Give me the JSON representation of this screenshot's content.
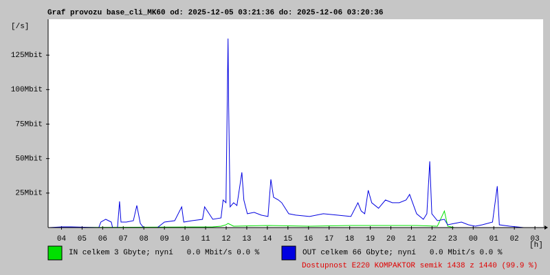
{
  "chart_data": {
    "type": "line",
    "title": "Graf provozu base_cli_MK60 od: 2025-12-05 03:21:36 do: 2025-12-06 03:20:36",
    "y_label": "[/s]",
    "x_label": "[h]",
    "xlim": [
      3.35,
      27.33
    ],
    "xticks": [
      {
        "value": 4,
        "label": "04"
      },
      {
        "value": 5,
        "label": "05"
      },
      {
        "value": 6,
        "label": "06"
      },
      {
        "value": 7,
        "label": "07"
      },
      {
        "value": 8,
        "label": "08"
      },
      {
        "value": 9,
        "label": "09"
      },
      10,
      11,
      12,
      13,
      14,
      15,
      16,
      17,
      18,
      19,
      20,
      21,
      22,
      23,
      {
        "value": 24,
        "label": "00"
      },
      {
        "value": 25,
        "label": "01"
      },
      {
        "value": 26,
        "label": "02"
      },
      {
        "value": 27,
        "label": "03"
      }
    ],
    "ylim": [
      0,
      150
    ],
    "yticks": [
      {
        "value": 25,
        "label": "25Mbit"
      },
      {
        "value": 50,
        "label": "50Mbit"
      },
      {
        "value": 75,
        "label": "75Mbit"
      },
      {
        "value": 100,
        "label": "100Mbit"
      },
      {
        "value": 125,
        "label": "125Mbit"
      }
    ],
    "grid": false,
    "series": [
      {
        "name": "IN celkem 3 Gbyte; nyní   0.0 Mbit/s 0.0 %",
        "color": "#00e000",
        "x": [
          3.4,
          11.35,
          11.75,
          11.99,
          12.09,
          12.36,
          14.03,
          16.05,
          18.06,
          20.07,
          21.25,
          22.26,
          22.6,
          22.76,
          23.09,
          27.29
        ],
        "values": [
          0,
          0.5,
          1,
          2,
          3,
          1,
          1.5,
          1,
          1.5,
          1.5,
          1.5,
          1,
          12,
          1,
          0,
          0
        ]
      },
      {
        "name": "OUT celkem 66 Gbyte; nyní   0.0 Mbit/s 0.0 %",
        "color": "#0000e0",
        "x": [
          3.4,
          4.03,
          4.47,
          5.81,
          5.91,
          6.15,
          6.42,
          6.48,
          6.72,
          6.82,
          6.89,
          7.15,
          7.49,
          7.66,
          7.83,
          7.99,
          8.66,
          8.83,
          9.0,
          9.5,
          9.84,
          9.94,
          10.34,
          10.85,
          10.95,
          11.35,
          11.75,
          11.85,
          11.99,
          12.09,
          12.12,
          12.19,
          12.36,
          12.52,
          12.76,
          12.86,
          13.03,
          13.36,
          13.7,
          14.03,
          14.17,
          14.3,
          14.54,
          14.7,
          15.04,
          15.38,
          16.05,
          16.72,
          17.39,
          18.06,
          18.4,
          18.56,
          18.73,
          18.9,
          19.07,
          19.4,
          19.74,
          20.07,
          20.41,
          20.74,
          20.91,
          21.08,
          21.25,
          21.58,
          21.75,
          21.89,
          21.99,
          22.26,
          22.6,
          22.76,
          23.09,
          23.43,
          23.77,
          24.1,
          24.44,
          24.94,
          25.17,
          25.27,
          25.78,
          26.45,
          27.29
        ],
        "values": [
          0,
          0.5,
          0.5,
          0,
          4,
          6,
          4,
          0,
          0,
          19,
          4,
          4,
          5,
          16,
          3,
          0,
          0,
          2,
          4,
          5,
          15,
          4,
          5,
          6,
          15,
          6,
          7,
          20,
          18,
          137,
          88,
          15,
          18,
          16,
          40,
          20,
          10,
          11,
          9,
          8,
          35,
          22,
          20,
          18,
          10,
          9,
          8,
          10,
          9,
          8,
          18,
          12,
          10,
          27,
          18,
          14,
          20,
          18,
          18,
          20,
          24,
          17,
          10,
          6,
          10,
          48,
          10,
          5,
          6,
          2,
          3,
          4,
          2,
          1,
          2,
          4,
          30,
          2,
          1,
          0,
          0
        ]
      }
    ],
    "annotation": "Dostupnost E220 KOMPAKTOR semik 1438 z 1440 (99.9 %)"
  }
}
